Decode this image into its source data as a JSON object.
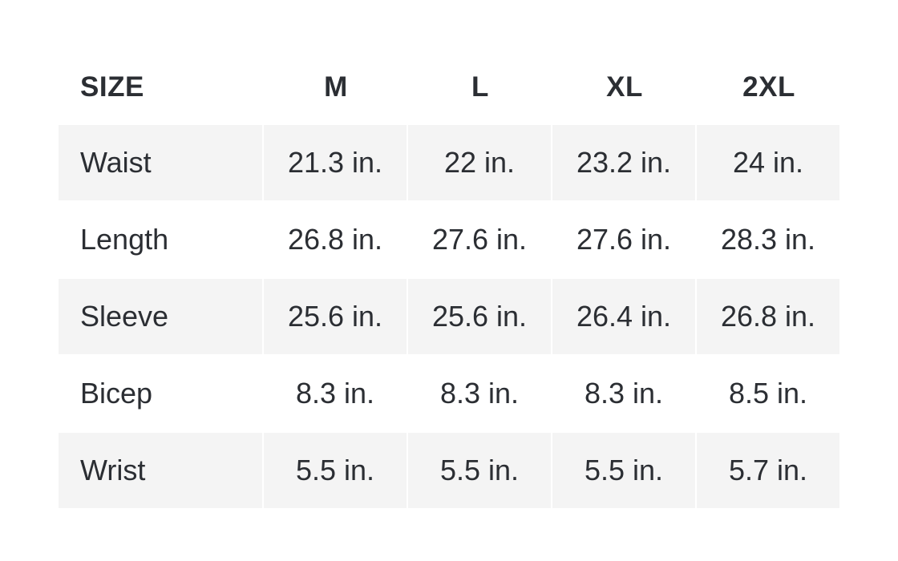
{
  "header": [
    "SIZE",
    "M",
    "L",
    "XL",
    "2XL"
  ],
  "rows": [
    {
      "label": "Waist",
      "values": [
        "21.3 in.",
        "22 in.",
        "23.2 in.",
        "24 in."
      ]
    },
    {
      "label": "Length",
      "values": [
        "26.8 in.",
        "27.6 in.",
        "27.6 in.",
        "28.3 in."
      ]
    },
    {
      "label": "Sleeve",
      "values": [
        "25.6 in.",
        "25.6 in.",
        "26.4 in.",
        "26.8 in."
      ]
    },
    {
      "label": "Bicep",
      "values": [
        "8.3 in.",
        "8.3 in.",
        "8.3 in.",
        "8.5 in."
      ]
    },
    {
      "label": "Wrist",
      "values": [
        "5.5 in.",
        "5.5 in.",
        "5.5 in.",
        "5.7 in."
      ]
    }
  ],
  "colors": {
    "text": "#2b2e33",
    "stripe": "#f4f4f4"
  }
}
